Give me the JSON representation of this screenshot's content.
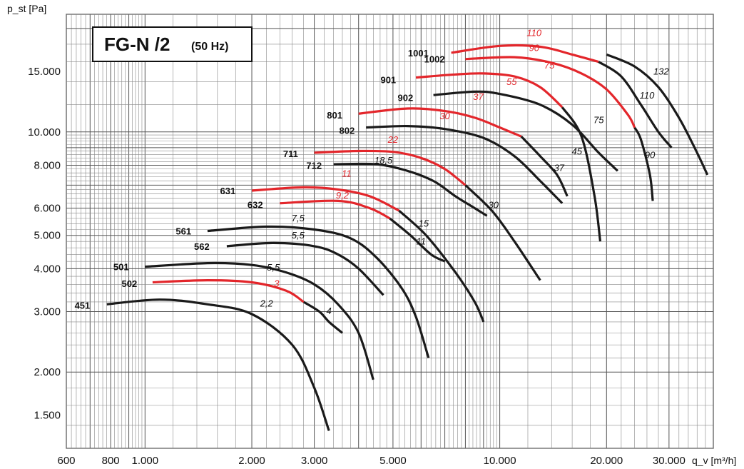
{
  "title": {
    "main": "FG-N /2",
    "sub": "(50 Hz)"
  },
  "colors": {
    "black_curve": "#1a1a1a",
    "red_curve": "#e3262b",
    "grid": "#555555",
    "background": "#ffffff"
  },
  "chart_data": {
    "type": "line",
    "title": "FG-N /2 (50 Hz)",
    "ylabel": "p_st [Pa]",
    "xlabel": "q_v [m³/h]",
    "x_scale": "log",
    "y_scale": "log",
    "xlim": [
      600,
      40000
    ],
    "ylim": [
      1200,
      22000
    ],
    "grid": true,
    "x_ticks": [
      {
        "value": 600,
        "label": "600"
      },
      {
        "value": 800,
        "label": "800"
      },
      {
        "value": 1000,
        "label": "1.000"
      },
      {
        "value": 2000,
        "label": "2.000"
      },
      {
        "value": 3000,
        "label": "3.000"
      },
      {
        "value": 5000,
        "label": "5.000"
      },
      {
        "value": 10000,
        "label": "10.000"
      },
      {
        "value": 20000,
        "label": "20.000"
      },
      {
        "value": 30000,
        "label": "30.000"
      }
    ],
    "y_ticks": [
      {
        "value": 1500,
        "label": "1.500"
      },
      {
        "value": 2000,
        "label": "2.000"
      },
      {
        "value": 3000,
        "label": "3.000"
      },
      {
        "value": 4000,
        "label": "4.000"
      },
      {
        "value": 5000,
        "label": "5.000"
      },
      {
        "value": 6000,
        "label": "6.000"
      },
      {
        "value": 8000,
        "label": "8.000"
      },
      {
        "value": 10000,
        "label": "10.000"
      },
      {
        "value": 15000,
        "label": "15.000"
      }
    ],
    "series": [
      {
        "name": "451",
        "points": [
          [
            780,
            3150
          ],
          [
            1100,
            3250
          ],
          [
            1500,
            3150
          ],
          [
            2000,
            2950
          ],
          [
            2600,
            2400
          ],
          [
            3000,
            1800
          ],
          [
            3300,
            1350
          ]
        ],
        "motors": [
          {
            "kw": "2,2",
            "from": 780,
            "to": 3300,
            "color": "black"
          }
        ]
      },
      {
        "name": "501",
        "points": [
          [
            1000,
            4050
          ],
          [
            1500,
            4150
          ],
          [
            2000,
            4100
          ],
          [
            2500,
            3900
          ],
          [
            3000,
            3600
          ],
          [
            3500,
            3150
          ],
          [
            4000,
            2600
          ],
          [
            4400,
            1900
          ]
        ],
        "motors": [
          {
            "kw": "5,5",
            "from": 1000,
            "to": 4400,
            "color": "black"
          }
        ]
      },
      {
        "name": "502",
        "points": [
          [
            1050,
            3650
          ],
          [
            1500,
            3700
          ],
          [
            2000,
            3650
          ],
          [
            2500,
            3450
          ],
          [
            2800,
            3200
          ],
          [
            3100,
            3000
          ],
          [
            3300,
            2800
          ],
          [
            3600,
            2600
          ]
        ],
        "motors": [
          {
            "kw": "3",
            "from": 1050,
            "to": 2800,
            "color": "red"
          },
          {
            "kw": "4",
            "from": 2800,
            "to": 3600,
            "color": "black"
          }
        ]
      },
      {
        "name": "561",
        "points": [
          [
            1500,
            5150
          ],
          [
            2200,
            5300
          ],
          [
            3000,
            5200
          ],
          [
            3800,
            4900
          ],
          [
            4500,
            4300
          ],
          [
            5300,
            3500
          ],
          [
            5800,
            2900
          ],
          [
            6300,
            2200
          ]
        ],
        "motors": [
          {
            "kw": "7,5",
            "from": 1500,
            "to": 6300,
            "color": "black"
          }
        ]
      },
      {
        "name": "562",
        "points": [
          [
            1700,
            4650
          ],
          [
            2300,
            4750
          ],
          [
            3000,
            4650
          ],
          [
            3500,
            4400
          ],
          [
            4000,
            4000
          ],
          [
            4700,
            3350
          ]
        ],
        "motors": [
          {
            "kw": "5,5",
            "from": 1700,
            "to": 4700,
            "color": "black"
          }
        ]
      },
      {
        "name": "631",
        "points": [
          [
            2000,
            6750
          ],
          [
            2800,
            6900
          ],
          [
            3500,
            6800
          ],
          [
            4300,
            6500
          ],
          [
            5200,
            5900
          ],
          [
            6200,
            5000
          ],
          [
            7500,
            3900
          ],
          [
            8500,
            3200
          ],
          [
            9000,
            2800
          ]
        ],
        "motors": [
          {
            "kw": "11",
            "from": 2000,
            "to": 5200,
            "color": "red"
          },
          {
            "kw": "15",
            "from": 5200,
            "to": 9000,
            "color": "black"
          }
        ]
      },
      {
        "name": "632",
        "points": [
          [
            2400,
            6200
          ],
          [
            3500,
            6300
          ],
          [
            4300,
            6000
          ],
          [
            4900,
            5600
          ],
          [
            5600,
            5000
          ],
          [
            6400,
            4400
          ],
          [
            7000,
            4200
          ]
        ],
        "motors": [
          {
            "kw": "9,2",
            "from": 2400,
            "to": 4900,
            "color": "red"
          },
          {
            "kw": "11",
            "from": 4900,
            "to": 7000,
            "color": "black"
          }
        ]
      },
      {
        "name": "711",
        "points": [
          [
            3000,
            8700
          ],
          [
            4000,
            8800
          ],
          [
            5000,
            8750
          ],
          [
            6000,
            8400
          ],
          [
            7000,
            7800
          ],
          [
            8000,
            7000
          ],
          [
            9500,
            5900
          ],
          [
            11000,
            4800
          ],
          [
            13000,
            3700
          ]
        ],
        "motors": [
          {
            "kw": "22",
            "from": 3000,
            "to": 8000,
            "color": "red"
          },
          {
            "kw": "30",
            "from": 8000,
            "to": 13000,
            "color": "black"
          }
        ]
      },
      {
        "name": "712",
        "points": [
          [
            3400,
            8050
          ],
          [
            4500,
            8050
          ],
          [
            5500,
            7700
          ],
          [
            6500,
            7200
          ],
          [
            7500,
            6500
          ],
          [
            8500,
            6000
          ],
          [
            9200,
            5700
          ]
        ],
        "motors": [
          {
            "kw": "18,5",
            "from": 3400,
            "to": 9200,
            "color": "black"
          }
        ]
      },
      {
        "name": "801",
        "points": [
          [
            4000,
            11300
          ],
          [
            5500,
            11700
          ],
          [
            7000,
            11500
          ],
          [
            8500,
            11000
          ],
          [
            10000,
            10300
          ],
          [
            11500,
            9700
          ],
          [
            13000,
            8500
          ],
          [
            14500,
            7500
          ],
          [
            15500,
            6500
          ]
        ],
        "motors": [
          {
            "kw": "30",
            "from": 4000,
            "to": 11500,
            "color": "red"
          },
          {
            "kw": "45",
            "from": 11500,
            "to": 15500,
            "color": "black"
          }
        ]
      },
      {
        "name": "802",
        "points": [
          [
            4200,
            10300
          ],
          [
            5500,
            10400
          ],
          [
            7000,
            10200
          ],
          [
            9000,
            9600
          ],
          [
            11000,
            8500
          ],
          [
            13000,
            7200
          ],
          [
            15000,
            6200
          ]
        ],
        "motors": [
          {
            "kw": "37",
            "from": 4200,
            "to": 15000,
            "color": "black"
          }
        ]
      },
      {
        "name": "901",
        "points": [
          [
            5800,
            14400
          ],
          [
            7500,
            14700
          ],
          [
            9000,
            14800
          ],
          [
            11000,
            14500
          ],
          [
            13000,
            13500
          ],
          [
            15000,
            11800
          ],
          [
            17000,
            9700
          ],
          [
            18500,
            6500
          ],
          [
            19200,
            4800
          ]
        ],
        "motors": [
          {
            "kw": "55",
            "from": 5800,
            "to": 15000,
            "color": "red"
          },
          {
            "kw": "75",
            "from": 15000,
            "to": 19200,
            "color": "black"
          }
        ]
      },
      {
        "name": "902",
        "points": [
          [
            6500,
            12800
          ],
          [
            8500,
            13100
          ],
          [
            10000,
            12900
          ],
          [
            13000,
            12000
          ],
          [
            16000,
            10500
          ],
          [
            19000,
            8700
          ],
          [
            21500,
            7700
          ]
        ],
        "motors": [
          {
            "kw": "37",
            "from": 6500,
            "to": 21500,
            "color": "black"
          }
        ]
      },
      {
        "name": "1001",
        "points": [
          [
            7300,
            17000
          ],
          [
            10000,
            17800
          ],
          [
            13000,
            17700
          ],
          [
            16000,
            16800
          ],
          [
            19000,
            16000
          ],
          [
            22000,
            14500
          ],
          [
            25000,
            12000
          ],
          [
            28000,
            10000
          ],
          [
            30500,
            9000
          ]
        ],
        "motors": [
          {
            "kw": "110",
            "from": 7300,
            "to": 19000,
            "color": "red"
          },
          {
            "kw": "110",
            "from": 19000,
            "to": 30500,
            "color": "black"
          }
        ]
      },
      {
        "name": "1002",
        "points": [
          [
            8000,
            16300
          ],
          [
            11000,
            16500
          ],
          [
            14000,
            15900
          ],
          [
            17000,
            14800
          ],
          [
            20000,
            13300
          ],
          [
            23000,
            11200
          ],
          [
            25000,
            9500
          ],
          [
            26500,
            7500
          ],
          [
            27000,
            6300
          ]
        ],
        "motors": [
          {
            "kw": "90",
            "from": 8000,
            "to": 24000,
            "color": "red"
          },
          {
            "kw": "90",
            "from": 24000,
            "to": 27000,
            "color": "black"
          }
        ]
      },
      {
        "name": "1001-132",
        "points": [
          [
            20000,
            16800
          ],
          [
            24000,
            15500
          ],
          [
            28000,
            13500
          ],
          [
            32000,
            11000
          ],
          [
            36000,
            8700
          ],
          [
            38500,
            7500
          ]
        ],
        "motors": [
          {
            "kw": "132",
            "from": 20000,
            "to": 38500,
            "color": "black"
          }
        ]
      }
    ],
    "annotations": [
      {
        "text": "110",
        "x": 12500,
        "y": 19000,
        "color": "red"
      },
      {
        "text": "90",
        "x": 12500,
        "y": 17200,
        "color": "red"
      },
      {
        "text": "75",
        "x": 13800,
        "y": 15300,
        "color": "red"
      },
      {
        "text": "55",
        "x": 10800,
        "y": 13700,
        "color": "red"
      },
      {
        "text": "37",
        "x": 8700,
        "y": 12400,
        "color": "red"
      },
      {
        "text": "30",
        "x": 7000,
        "y": 10900,
        "color": "red"
      },
      {
        "text": "22",
        "x": 5000,
        "y": 9300,
        "color": "red"
      },
      {
        "text": "18,5",
        "x": 4700,
        "y": 8100,
        "color": "black"
      },
      {
        "text": "11",
        "x": 3700,
        "y": 7400,
        "color": "red"
      },
      {
        "text": "9,2",
        "x": 3600,
        "y": 6400,
        "color": "red"
      },
      {
        "text": "7,5",
        "x": 2700,
        "y": 5500,
        "color": "black"
      },
      {
        "text": "5,5",
        "x": 2700,
        "y": 4900,
        "color": "black"
      },
      {
        "text": "5,5",
        "x": 2300,
        "y": 3950,
        "color": "black"
      },
      {
        "text": "3",
        "x": 2350,
        "y": 3550,
        "color": "red"
      },
      {
        "text": "2,2",
        "x": 2200,
        "y": 3100,
        "color": "black"
      },
      {
        "text": "4",
        "x": 3300,
        "y": 2950,
        "color": "black"
      },
      {
        "text": "15",
        "x": 6100,
        "y": 5300,
        "color": "black"
      },
      {
        "text": "11",
        "x": 6000,
        "y": 4700,
        "color": "black"
      },
      {
        "text": "30",
        "x": 9600,
        "y": 6000,
        "color": "black"
      },
      {
        "text": "37",
        "x": 14700,
        "y": 7700,
        "color": "black"
      },
      {
        "text": "45",
        "x": 16500,
        "y": 8600,
        "color": "black"
      },
      {
        "text": "75",
        "x": 19000,
        "y": 10600,
        "color": "black"
      },
      {
        "text": "90",
        "x": 26500,
        "y": 8400,
        "color": "black"
      },
      {
        "text": "110",
        "x": 26000,
        "y": 12500,
        "color": "black"
      },
      {
        "text": "132",
        "x": 28500,
        "y": 14700,
        "color": "black"
      }
    ],
    "model_labels": [
      {
        "text": "1001",
        "x": 6300,
        "y": 17000
      },
      {
        "text": "1002",
        "x": 7000,
        "y": 16300
      },
      {
        "text": "901",
        "x": 5100,
        "y": 14200
      },
      {
        "text": "902",
        "x": 5700,
        "y": 12600
      },
      {
        "text": "801",
        "x": 3600,
        "y": 11200
      },
      {
        "text": "802",
        "x": 3900,
        "y": 10100
      },
      {
        "text": "711",
        "x": 2700,
        "y": 8650
      },
      {
        "text": "712",
        "x": 3150,
        "y": 8000
      },
      {
        "text": "631",
        "x": 1800,
        "y": 6750
      },
      {
        "text": "632",
        "x": 2150,
        "y": 6150
      },
      {
        "text": "561",
        "x": 1350,
        "y": 5150
      },
      {
        "text": "562",
        "x": 1520,
        "y": 4650
      },
      {
        "text": "501",
        "x": 900,
        "y": 4050
      },
      {
        "text": "502",
        "x": 950,
        "y": 3620
      },
      {
        "text": "451",
        "x": 700,
        "y": 3130
      }
    ]
  }
}
